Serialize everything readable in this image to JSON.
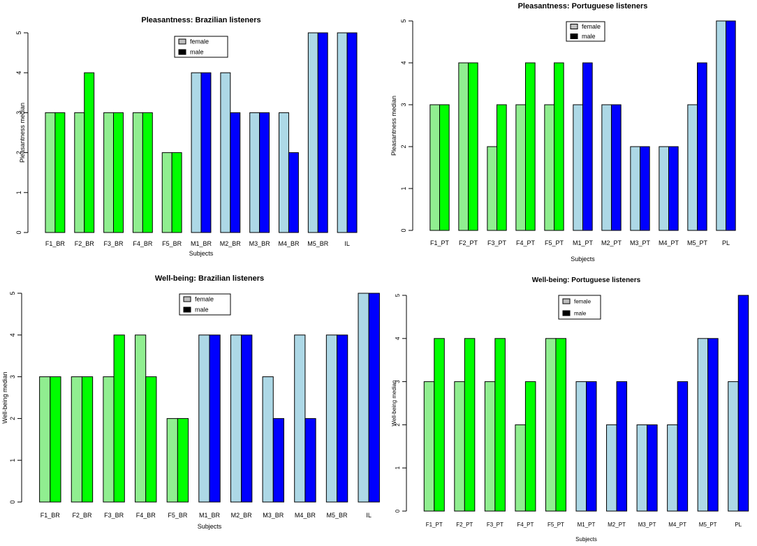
{
  "colors": {
    "female_F": "#90ee90",
    "male_F": "#00ff00",
    "female_M": "#add8e6",
    "male_M": "#0000ff",
    "legend_female": "#bebebe",
    "legend_male": "#000000",
    "outline": "#000000"
  },
  "chart_data": [
    {
      "type": "bar",
      "title": "Pleasantness: Brazilian listeners",
      "xlabel": "Subjects",
      "ylabel": "Pleasantness median",
      "ylim": [
        0,
        5
      ],
      "yticks": [
        "0",
        "1",
        "2",
        "3",
        "4",
        "5"
      ],
      "legend": {
        "position": "top-center",
        "entries": [
          "female",
          "male"
        ]
      },
      "categories": [
        "F1_BR",
        "F2_BR",
        "F3_BR",
        "F4_BR",
        "F5_BR",
        "M1_BR",
        "M2_BR",
        "M3_BR",
        "M4_BR",
        "M5_BR",
        "IL"
      ],
      "groups": [
        "F",
        "F",
        "F",
        "F",
        "F",
        "M",
        "M",
        "M",
        "M",
        "M",
        "M"
      ],
      "series": [
        {
          "name": "female",
          "values": [
            3,
            3,
            3,
            3,
            2,
            4,
            4,
            3,
            3,
            5,
            5
          ]
        },
        {
          "name": "male",
          "values": [
            3,
            4,
            3,
            3,
            2,
            4,
            3,
            3,
            2,
            5,
            5
          ]
        }
      ]
    },
    {
      "type": "bar",
      "title": "Pleasantness: Portuguese listeners",
      "xlabel": "Subjects",
      "ylabel": "Pleasantness median",
      "ylim": [
        0,
        5
      ],
      "yticks": [
        "0",
        "1",
        "2",
        "3",
        "4",
        "5"
      ],
      "legend": {
        "position": "top-center",
        "entries": [
          "female",
          "male"
        ]
      },
      "categories": [
        "F1_PT",
        "F2_PT",
        "F3_PT",
        "F4_PT",
        "F5_PT",
        "M1_PT",
        "M2_PT",
        "M3_PT",
        "M4_PT",
        "M5_PT",
        "PL"
      ],
      "groups": [
        "F",
        "F",
        "F",
        "F",
        "F",
        "M",
        "M",
        "M",
        "M",
        "M",
        "M"
      ],
      "series": [
        {
          "name": "female",
          "values": [
            3,
            4,
            2,
            3,
            3,
            3,
            3,
            2,
            2,
            3,
            5
          ]
        },
        {
          "name": "male",
          "values": [
            3,
            4,
            3,
            4,
            4,
            4,
            3,
            2,
            2,
            4,
            5
          ]
        }
      ]
    },
    {
      "type": "bar",
      "title": "Well-being: Brazilian listeners",
      "xlabel": "Subjects",
      "ylabel": "Well-being median",
      "ylim": [
        0,
        5
      ],
      "yticks": [
        "0",
        "1",
        "2",
        "3",
        "4",
        "5"
      ],
      "legend": {
        "position": "top-center",
        "entries": [
          "female",
          "male"
        ]
      },
      "categories": [
        "F1_BR",
        "F2_BR",
        "F3_BR",
        "F4_BR",
        "F5_BR",
        "M1_BR",
        "M2_BR",
        "M3_BR",
        "M4_BR",
        "M5_BR",
        "IL"
      ],
      "groups": [
        "F",
        "F",
        "F",
        "F",
        "F",
        "M",
        "M",
        "M",
        "M",
        "M",
        "M"
      ],
      "series": [
        {
          "name": "female",
          "values": [
            3,
            3,
            3,
            4,
            2,
            4,
            4,
            3,
            4,
            4,
            5
          ]
        },
        {
          "name": "male",
          "values": [
            3,
            3,
            4,
            3,
            2,
            4,
            4,
            2,
            2,
            4,
            5
          ]
        }
      ]
    },
    {
      "type": "bar",
      "title": "Well-being: Portuguese listeners",
      "xlabel": "Subjects",
      "ylabel": "Well-being median",
      "ylim": [
        0,
        5
      ],
      "yticks": [
        "0",
        "1",
        "2",
        "3",
        "4",
        "5"
      ],
      "legend": {
        "position": "top-center",
        "entries": [
          "female",
          "male"
        ]
      },
      "categories": [
        "F1_PT",
        "F2_PT",
        "F3_PT",
        "F4_PT",
        "F5_PT",
        "M1_PT",
        "M2_PT",
        "M3_PT",
        "M4_PT",
        "M5_PT",
        "PL"
      ],
      "groups": [
        "F",
        "F",
        "F",
        "F",
        "F",
        "M",
        "M",
        "M",
        "M",
        "M",
        "M"
      ],
      "series": [
        {
          "name": "female",
          "values": [
            3,
            3,
            3,
            2,
            4,
            3,
            2,
            2,
            2,
            4,
            3
          ]
        },
        {
          "name": "male",
          "values": [
            4,
            4,
            4,
            3,
            4,
            3,
            3,
            2,
            3,
            4,
            5
          ]
        }
      ]
    }
  ]
}
